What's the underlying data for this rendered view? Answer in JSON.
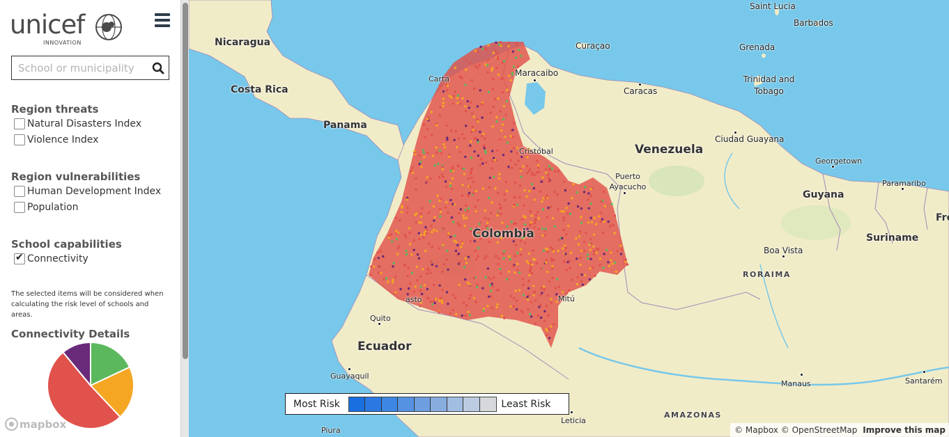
{
  "brand": {
    "name": "unicef",
    "subtitle": "INNOVATION"
  },
  "search": {
    "placeholder": "School or municipality"
  },
  "sections": {
    "threats": {
      "title": "Region threats",
      "items": [
        {
          "label": "Natural Disasters Index",
          "checked": false
        },
        {
          "label": "Violence Index",
          "checked": false
        }
      ]
    },
    "vulnerabilities": {
      "title": "Region vulnerabilities",
      "items": [
        {
          "label": "Human Development Index",
          "checked": false
        },
        {
          "label": "Population",
          "checked": false
        }
      ]
    },
    "capabilities": {
      "title": "School capabilities",
      "items": [
        {
          "label": "Connectivity",
          "checked": true
        }
      ]
    }
  },
  "note": "The selected items will be considered when calculating the risk level of schools and areas.",
  "connectivity": {
    "title": "Connectivity Details",
    "slices": [
      {
        "color": "#5cb85c",
        "fraction": 0.18
      },
      {
        "color": "#f5a623",
        "fraction": 0.2
      },
      {
        "color": "#e0524b",
        "fraction": 0.51
      },
      {
        "color": "#6a2a7a",
        "fraction": 0.11
      }
    ]
  },
  "map": {
    "labels": {
      "colombia": "Colombia",
      "venezuela": "Venezuela",
      "ecuador": "Ecuador",
      "nicaragua": "Nicaragua",
      "costa_rica": "Costa Rica",
      "panama": "Panama",
      "guyana": "Guyana",
      "suriname": "Suriname",
      "french_guiana": "French Guia",
      "curacao": "Curaçao",
      "saint_lucia": "Saint Lucia",
      "barbados": "Barbados",
      "grenada": "Grenada",
      "trinidad": "Trinidad and Tobago",
      "maracaibo": "Maracaibo",
      "caracas": "Caracas",
      "ciudad_guayana": "Ciudad Guayana",
      "georgetown": "Georgetown",
      "paramaribo": "Paramaribo",
      "puerto_ayacucho": "Puerto Ayacucho",
      "boa_vista": "Boa Vista",
      "roraima": "RORAIMA",
      "quito": "Quito",
      "guayaquil": "Guayaquil",
      "manaus": "Manaus",
      "santarem": "Santarém",
      "amazonas": "AMAZONAS",
      "piura": "Piura",
      "leticia": "Leticia",
      "mitu": "Mitú",
      "cristobal": "Cristóbal",
      "cartagena": "Carta",
      "pasto": "asto"
    },
    "legend": {
      "most": "Most Risk",
      "least": "Least Risk",
      "colors": [
        "#1a6fe0",
        "#2a79e2",
        "#3d86e3",
        "#5592e2",
        "#6c9ee0",
        "#87addf",
        "#a1bde0",
        "#bccbe0",
        "#d6d8db"
      ]
    },
    "attribution": {
      "mapbox": "© Mapbox",
      "osm": "© OpenStreetMap",
      "improve": "Improve this map"
    }
  },
  "mapbox_logo": "mapbox"
}
